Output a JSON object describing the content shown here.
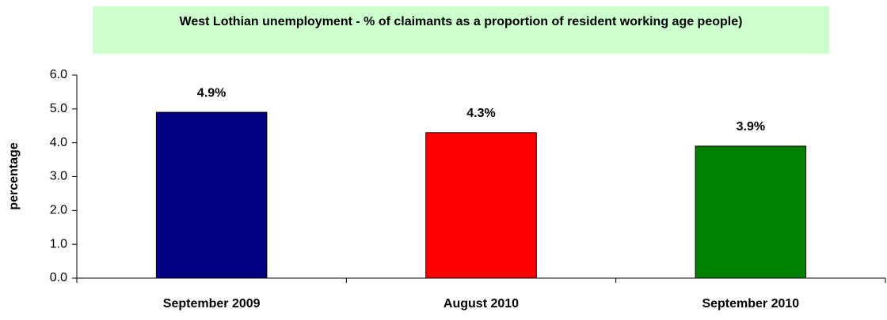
{
  "chart_data": {
    "type": "bar",
    "title": "West Lothian unemployment - % of claimants as a proportion of resident working age people)",
    "y_label": "percentage",
    "categories": [
      "September 2009",
      "August 2010",
      "September 2010"
    ],
    "values": [
      4.9,
      4.3,
      3.9
    ],
    "value_labels": [
      "4.9%",
      "4.3%",
      "3.9%"
    ],
    "colors": [
      "#000080",
      "#ff0000",
      "#008000"
    ],
    "ylim": [
      0,
      6
    ],
    "yticks": [
      {
        "value": 0,
        "label": "0.0"
      },
      {
        "value": 1,
        "label": "1.0"
      },
      {
        "value": 2,
        "label": "2.0"
      },
      {
        "value": 3,
        "label": "3.0"
      },
      {
        "value": 4,
        "label": "4.0"
      },
      {
        "value": 5,
        "label": "5.0"
      },
      {
        "value": 6,
        "label": "6.0"
      }
    ],
    "grid": false
  }
}
